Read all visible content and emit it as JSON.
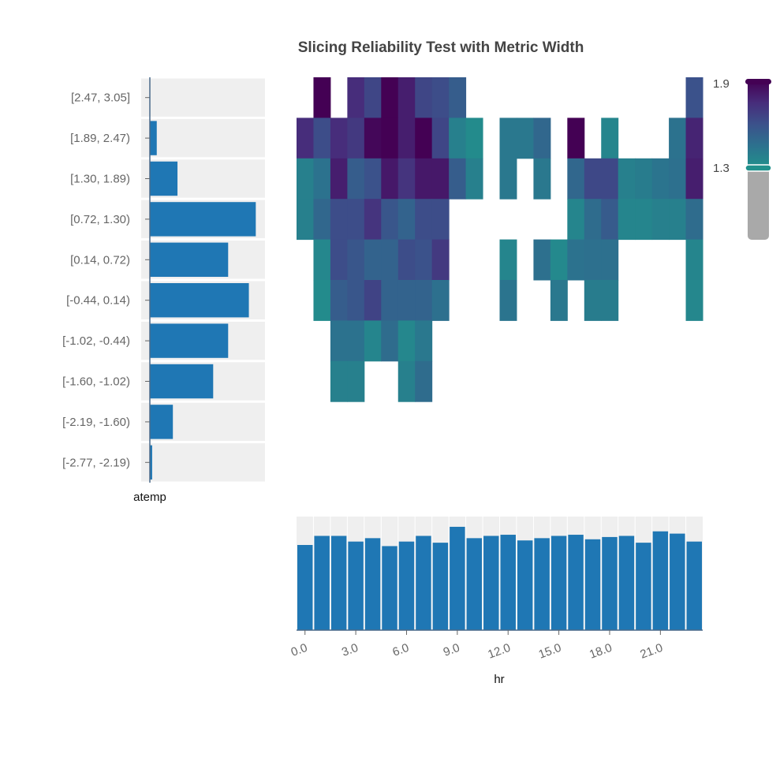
{
  "title": "Slicing Reliability Test with Metric Width",
  "chart_data": {
    "type": "heatmap",
    "title": "Slicing Reliability Test with Metric Width",
    "xlabel": "hr",
    "ylabel": "atemp",
    "x_tick_labels": [
      "0.0",
      "3.0",
      "6.0",
      "9.0",
      "12.0",
      "15.0",
      "18.0",
      "21.0"
    ],
    "x_bins": [
      0,
      1,
      2,
      3,
      4,
      5,
      6,
      7,
      8,
      9,
      10,
      11,
      12,
      13,
      14,
      15,
      16,
      17,
      18,
      19,
      20,
      21,
      22,
      23
    ],
    "y_bins": [
      "[-2.77, -2.19)",
      "[-2.19, -1.60)",
      "[-1.60, -1.02)",
      "[-1.02, -0.44)",
      "[-0.44, 0.14)",
      "[0.14, 0.72)",
      "[0.72, 1.30)",
      "[1.30, 1.89)",
      "[1.89, 2.47)",
      "[2.47, 3.05]"
    ],
    "cells": [
      {
        "y": "[2.47, 3.05]",
        "values": [
          null,
          2.05,
          null,
          1.75,
          1.65,
          2.15,
          1.8,
          1.65,
          1.62,
          1.55,
          null,
          null,
          null,
          null,
          null,
          null,
          null,
          null,
          null,
          null,
          null,
          null,
          null,
          1.6
        ]
      },
      {
        "y": "[1.89, 2.47)",
        "values": [
          1.75,
          1.62,
          1.75,
          1.7,
          1.88,
          1.9,
          1.8,
          1.95,
          1.65,
          1.38,
          1.33,
          null,
          1.42,
          1.42,
          1.5,
          null,
          2.0,
          null,
          1.36,
          null,
          null,
          null,
          1.45,
          1.78
        ]
      },
      {
        "y": "[1.30, 1.89)",
        "values": [
          1.38,
          1.45,
          1.8,
          1.55,
          1.6,
          1.82,
          1.72,
          1.82,
          1.82,
          1.55,
          1.38,
          null,
          1.42,
          null,
          1.42,
          null,
          1.5,
          1.64,
          1.64,
          1.38,
          1.4,
          1.44,
          1.46,
          1.8
        ]
      },
      {
        "y": "[0.72, 1.30)",
        "values": [
          1.38,
          1.5,
          1.62,
          1.62,
          1.72,
          1.58,
          1.52,
          1.62,
          1.62,
          null,
          null,
          null,
          null,
          null,
          null,
          null,
          1.36,
          1.48,
          1.56,
          1.36,
          1.36,
          1.38,
          1.38,
          1.48
        ]
      },
      {
        "y": "[0.14, 0.72)",
        "values": [
          null,
          1.35,
          1.62,
          1.58,
          1.52,
          1.52,
          1.62,
          1.6,
          1.7,
          null,
          null,
          null,
          1.36,
          null,
          1.46,
          1.34,
          1.45,
          1.46,
          1.46,
          null,
          null,
          null,
          null,
          1.36
        ]
      },
      {
        "y": "[-0.44, 0.14)",
        "values": [
          null,
          1.33,
          1.55,
          1.58,
          1.66,
          1.52,
          1.52,
          1.52,
          1.46,
          null,
          null,
          null,
          1.44,
          null,
          null,
          1.42,
          null,
          1.4,
          1.4,
          null,
          null,
          null,
          null,
          1.35
        ]
      },
      {
        "y": "[-1.02, -0.44)",
        "values": [
          null,
          null,
          1.45,
          1.45,
          1.36,
          1.48,
          1.35,
          1.42,
          null,
          null,
          null,
          null,
          null,
          null,
          null,
          null,
          null,
          null,
          null,
          null,
          null,
          null,
          null,
          null
        ]
      },
      {
        "y": "[-1.60, -1.02)",
        "values": [
          null,
          null,
          1.38,
          1.38,
          null,
          null,
          1.38,
          1.48,
          null,
          null,
          null,
          null,
          null,
          null,
          null,
          null,
          null,
          null,
          null,
          null,
          null,
          null,
          null,
          null
        ]
      },
      {
        "y": "[-2.19, -1.60)",
        "values": [
          null,
          null,
          null,
          null,
          null,
          null,
          null,
          null,
          null,
          null,
          null,
          null,
          null,
          null,
          null,
          null,
          null,
          null,
          null,
          null,
          null,
          null,
          null,
          null
        ]
      },
      {
        "y": "[-2.77, -2.19)",
        "values": [
          null,
          null,
          null,
          null,
          null,
          null,
          null,
          null,
          null,
          null,
          null,
          null,
          null,
          null,
          null,
          null,
          null,
          null,
          null,
          null,
          null,
          null,
          null,
          null
        ]
      }
    ],
    "y_histogram": {
      "ylabel": "atemp",
      "categories": [
        "[2.47, 3.05]",
        "[1.89, 2.47)",
        "[1.30, 1.89)",
        "[0.72, 1.30)",
        "[0.14, 0.72)",
        "[-0.44, 0.14)",
        "[-1.02, -0.44)",
        "[-1.60, -1.02)",
        "[-2.19, -1.60)",
        "[-2.77, -2.19)"
      ],
      "values": [
        0,
        6,
        24,
        92,
        68,
        86,
        68,
        55,
        20,
        2
      ]
    },
    "x_histogram": {
      "xlabel": "hr",
      "categories": [
        0,
        1,
        2,
        3,
        4,
        5,
        6,
        7,
        8,
        9,
        10,
        11,
        12,
        13,
        14,
        15,
        16,
        17,
        18,
        19,
        20,
        21,
        22,
        23
      ],
      "values": [
        75,
        83,
        83,
        78,
        81,
        74,
        78,
        83,
        77,
        91,
        81,
        83,
        84,
        79,
        81,
        83,
        84,
        80,
        82,
        83,
        77,
        87,
        85,
        78
      ]
    },
    "colorbar": {
      "tick_labels": [
        "1.9",
        "1.3"
      ],
      "range": [
        1.3,
        1.9
      ],
      "colorscale": [
        "#21918c",
        "#2c728e",
        "#3b528b",
        "#472d7b",
        "#440154"
      ]
    },
    "colors": {
      "bar": "#1f77b4",
      "bar_background": "#efefef",
      "axis": "#4a6a8a",
      "colorbar_gray": "#a9a9a9"
    }
  }
}
